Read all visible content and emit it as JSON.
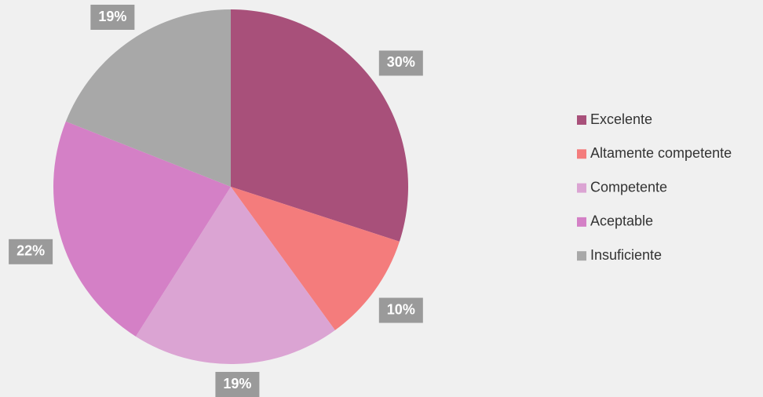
{
  "chart_data": {
    "type": "pie",
    "categories": [
      "Excelente",
      "Altamente competente",
      "Competente",
      "Aceptable",
      "Insuficiente"
    ],
    "values": [
      30,
      10,
      19,
      22,
      19
    ],
    "value_labels": [
      "30%",
      "10%",
      "19%",
      "22%",
      "19%"
    ],
    "colors": [
      "#a8507a",
      "#f47c7c",
      "#dba4d3",
      "#d480c6",
      "#a8a8a8"
    ],
    "legend": "right"
  }
}
